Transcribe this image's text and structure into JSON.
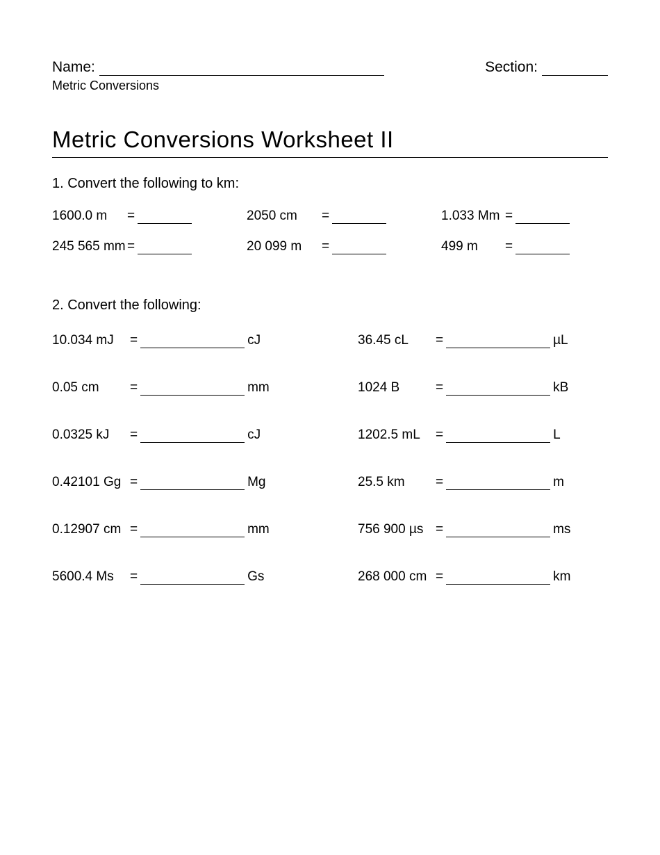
{
  "header": {
    "name_label": "Name:",
    "section_label": "Section:",
    "subtitle": "Metric Conversions"
  },
  "title": "Metric Conversions Worksheet II",
  "section1": {
    "heading": "1.  Convert the following to km:",
    "rows": [
      [
        {
          "left": "1600.0  m",
          "eq": "="
        },
        {
          "left": "2050 cm",
          "eq": "="
        },
        {
          "left": "1.033 Mm",
          "eq": "="
        }
      ],
      [
        {
          "left": "245 565 mm",
          "eq": "="
        },
        {
          "left": "20 099 m",
          "eq": "="
        },
        {
          "left": "499 m",
          "eq": "="
        }
      ]
    ]
  },
  "section2": {
    "heading": "2.  Convert the following:",
    "rows": [
      [
        {
          "left": "10.034 mJ",
          "eq": "=",
          "unit": "cJ"
        },
        {
          "left": "36.45 cL",
          "eq": "=",
          "unit": "µL"
        }
      ],
      [
        {
          "left": "0.05 cm",
          "eq": "=",
          "unit": "mm"
        },
        {
          "left": "1024 B",
          "eq": "=",
          "unit": "kB"
        }
      ],
      [
        {
          "left": "0.0325 kJ",
          "eq": "=",
          "unit": "cJ"
        },
        {
          "left": "1202.5 mL",
          "eq": "=",
          "unit": "L"
        }
      ],
      [
        {
          "left": "0.42101 Gg",
          "eq": "=",
          "unit": "Mg"
        },
        {
          "left": "25.5 km",
          "eq": "=",
          "unit": "m"
        }
      ],
      [
        {
          "left": "0.12907 cm",
          "eq": "=",
          "unit": "mm"
        },
        {
          "left": "756 900 µs",
          "eq": "=",
          "unit": "ms"
        }
      ],
      [
        {
          "left": "5600.4 Ms",
          "eq": "=",
          "unit": "Gs"
        },
        {
          "left": "268 000 cm",
          "eq": "=",
          "unit": "km"
        }
      ]
    ]
  }
}
